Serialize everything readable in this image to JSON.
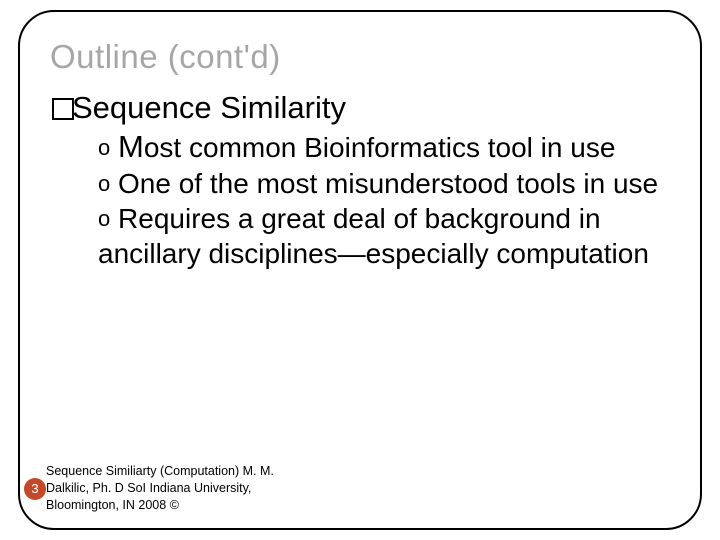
{
  "slide": {
    "title": "Outline (cont'd)",
    "top_bullet": "Sequence Similarity",
    "sub_items": [
      {
        "marker": "o",
        "text_lead": "M",
        "text_rest": "ost common Bioinformatics tool in use"
      },
      {
        "marker": "o",
        "text_lead": "",
        "text_rest": " One of the most misunderstood tools in use"
      },
      {
        "marker": "o",
        "text_lead": "",
        "text_rest": " Requires a great deal of background in ancillary disciplines—especially computation"
      }
    ],
    "footer_line1": "Sequence Similiarty (Computation) M. M.",
    "footer_line2": "Dalkilic, Ph. D SoI Indiana University,",
    "footer_line3": "Bloomington, IN 2008 ©",
    "page_number": "3"
  },
  "colors": {
    "title_gray": "#a6a6a6",
    "page_badge": "#c34a28",
    "text": "#000000",
    "background": "#ffffff"
  },
  "fonts": {
    "title_size_pt": 33,
    "body_size_pt": 31,
    "sub_size_pt": 28,
    "footer_size_pt": 12.5
  }
}
